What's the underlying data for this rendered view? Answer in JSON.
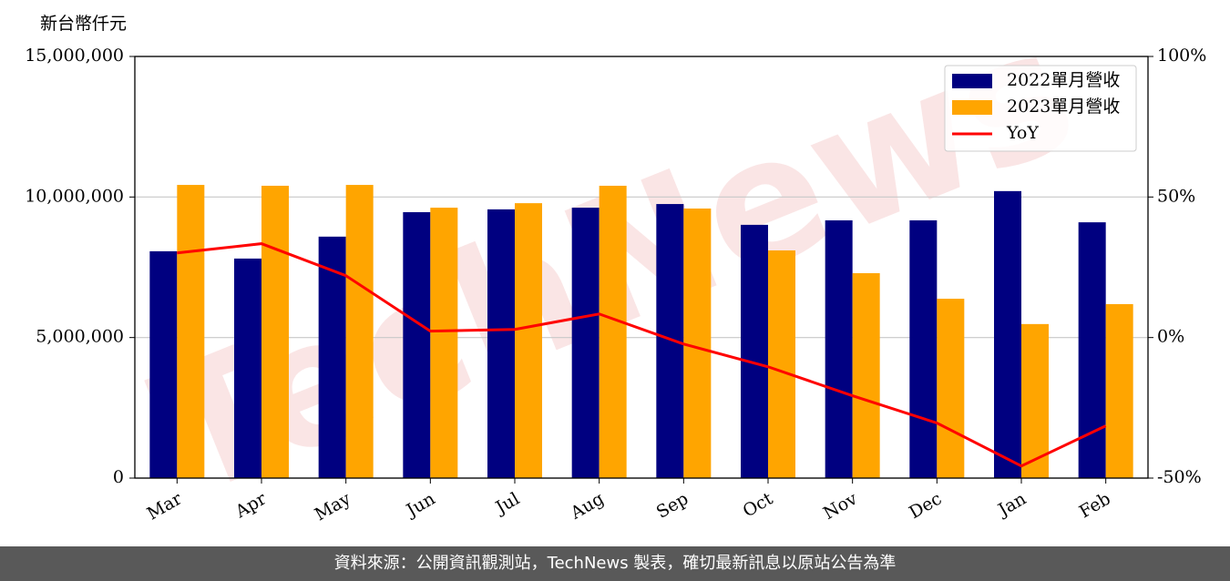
{
  "chart_data": {
    "type": "bar",
    "y_label": "新台幣仟元",
    "watermark": "TechNews",
    "categories": [
      "Mar",
      "Apr",
      "May",
      "Jun",
      "Jul",
      "Aug",
      "Sep",
      "Oct",
      "Nov",
      "Dec",
      "Jan",
      "Feb"
    ],
    "series": [
      {
        "name": "2022單月營收",
        "color": "#000080",
        "values": [
          8070000,
          7810000,
          8590000,
          9460000,
          9560000,
          9620000,
          9750000,
          9010000,
          9170000,
          9170000,
          10210000,
          9100000
        ]
      },
      {
        "name": "2023單月營收",
        "color": "#ffa500",
        "values": [
          10430000,
          10400000,
          10430000,
          9620000,
          9780000,
          10400000,
          9590000,
          8100000,
          7290000,
          6380000,
          5480000,
          6190000
        ]
      },
      {
        "name": "YoY",
        "color": "#ff0000",
        "type": "line",
        "axis": "y2",
        "values": [
          30.1,
          33.4,
          22.0,
          2.3,
          2.9,
          8.4,
          -2.3,
          -10.4,
          -20.7,
          -30.4,
          -45.7,
          -31.4
        ]
      }
    ],
    "ylim": [
      0,
      15000000
    ],
    "yticks": [
      0,
      {
        "value": 5000000,
        "label": "5,000,000"
      },
      {
        "value": 10000000,
        "label": "10,000,000"
      },
      {
        "value": 15000000,
        "label": "15,000,000"
      }
    ],
    "y2lim": [
      -50,
      100
    ],
    "y2ticks": [
      {
        "value": -50,
        "label": "-50%"
      },
      {
        "value": 0,
        "label": "0%"
      },
      {
        "value": 50,
        "label": "50%"
      },
      {
        "value": 100,
        "label": "100%"
      }
    ],
    "grid": true,
    "legend": "upper right"
  },
  "footer": "資料來源：公開資訊觀測站，TechNews 製表，確切最新訊息以原站公告為準"
}
